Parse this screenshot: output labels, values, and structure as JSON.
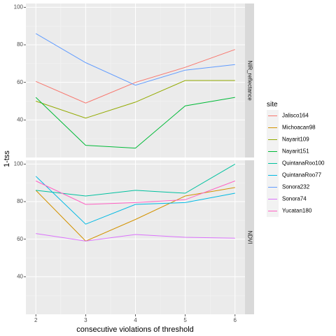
{
  "chart_data": {
    "type": "line",
    "xlabel": "consecutive violations of threshold",
    "ylabel": "1-tss",
    "x": [
      2,
      3,
      4,
      5,
      6
    ],
    "x_ticks": [
      "2",
      "3",
      "4",
      "5",
      "6"
    ],
    "ylim": [
      20,
      102
    ],
    "y_ticks": [
      "40",
      "60",
      "80",
      "100"
    ],
    "grid": true,
    "legend": {
      "title": "site",
      "position": "right",
      "entries": [
        {
          "name": "Jalisco164",
          "color": "#F8766D"
        },
        {
          "name": "Michoacan98",
          "color": "#D39200"
        },
        {
          "name": "Nayarit109",
          "color": "#93AA00"
        },
        {
          "name": "Nayarit151",
          "color": "#00BA38"
        },
        {
          "name": "QuintanaRoo100",
          "color": "#00C19F"
        },
        {
          "name": "QuintanaRoo77",
          "color": "#00B9E3"
        },
        {
          "name": "Sonora232",
          "color": "#619CFF"
        },
        {
          "name": "Sonora74",
          "color": "#DB72FB"
        },
        {
          "name": "Yucatan180",
          "color": "#FF61C3"
        }
      ]
    },
    "panels": [
      {
        "strip": "NIR_reflectance",
        "series": [
          {
            "name": "Jalisco164",
            "values": [
              60.5,
              49,
              60,
              68,
              77.5
            ]
          },
          {
            "name": "Nayarit109",
            "values": [
              50,
              41,
              49.5,
              61,
              61
            ]
          },
          {
            "name": "Nayarit151",
            "values": [
              52,
              26.5,
              25,
              47.5,
              52
            ]
          },
          {
            "name": "Sonora232",
            "values": [
              86,
              70.5,
              58.5,
              66.5,
              69.5
            ]
          }
        ]
      },
      {
        "strip": "NDVI",
        "series": [
          {
            "name": "Michoacan98",
            "values": [
              86,
              59,
              70.5,
              83,
              87.5
            ]
          },
          {
            "name": "QuintanaRoo100",
            "values": [
              86,
              83,
              86,
              84.5,
              100
            ]
          },
          {
            "name": "QuintanaRoo77",
            "values": [
              93.5,
              68,
              78.5,
              79.5,
              84.5
            ]
          },
          {
            "name": "Sonora74",
            "values": [
              63,
              59,
              62.5,
              61,
              60.5
            ]
          },
          {
            "name": "Yucatan180",
            "values": [
              91,
              78.5,
              79.5,
              81,
              91
            ]
          }
        ]
      }
    ]
  }
}
